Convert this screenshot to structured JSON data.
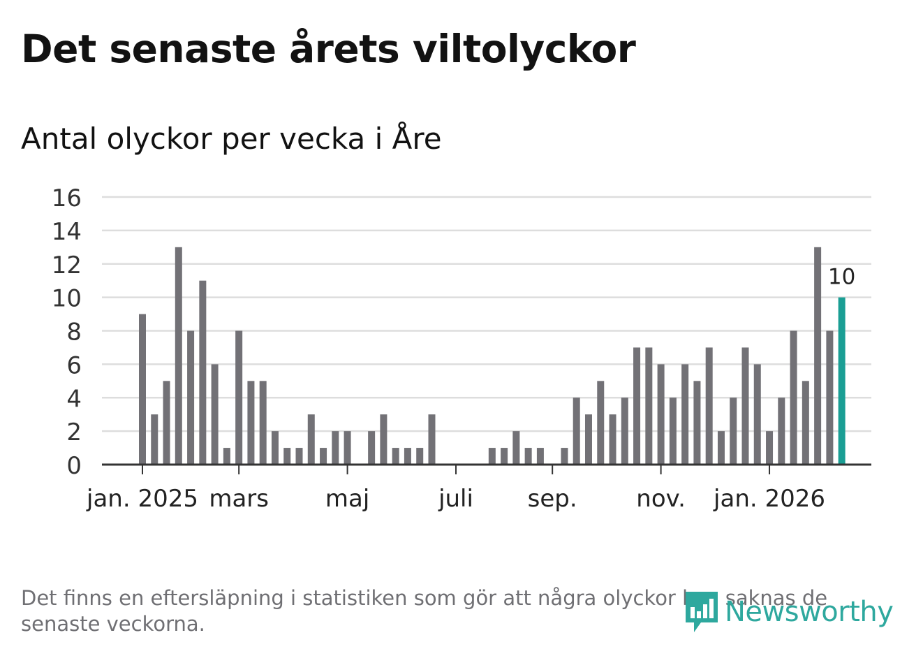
{
  "header": {
    "title": "Det senaste årets viltolyckor",
    "subtitle": "Antal olyckor per vecka i Åre"
  },
  "footer": {
    "note": "Det finns en eftersläpning i statistiken som gör att några olyckor kan saknas de senaste veckorna.",
    "brand": "Newsworthy"
  },
  "colors": {
    "bar": "#727176",
    "highlight": "#1a9e94",
    "grid": "#dddddd",
    "axis": "#333333",
    "brand": "#2ea89e"
  },
  "chart_data": {
    "type": "bar",
    "title": "Det senaste årets viltolyckor",
    "subtitle": "Antal olyckor per vecka i Åre",
    "xlabel": "",
    "ylabel": "",
    "ylim": [
      0,
      16
    ],
    "yticks": [
      0,
      2,
      4,
      6,
      8,
      10,
      12,
      14,
      16
    ],
    "grid": true,
    "xtick_labels": [
      {
        "label": "jan. 2025",
        "week_index": 0
      },
      {
        "label": "mars",
        "week_index": 8
      },
      {
        "label": "maj",
        "week_index": 17
      },
      {
        "label": "juli",
        "week_index": 26
      },
      {
        "label": "sep.",
        "week_index": 34
      },
      {
        "label": "nov.",
        "week_index": 43
      },
      {
        "label": "jan. 2026",
        "week_index": 52
      }
    ],
    "values": [
      9,
      3,
      5,
      13,
      8,
      11,
      6,
      1,
      8,
      5,
      5,
      2,
      1,
      1,
      3,
      1,
      2,
      2,
      0,
      2,
      3,
      1,
      1,
      1,
      3,
      0,
      0,
      0,
      0,
      1,
      1,
      2,
      1,
      1,
      0,
      1,
      4,
      3,
      5,
      3,
      4,
      7,
      7,
      6,
      4,
      6,
      5,
      7,
      2,
      4,
      7,
      6,
      2,
      4,
      8,
      5,
      13,
      8,
      10
    ],
    "highlight_index": 58,
    "highlight_label": "10"
  }
}
